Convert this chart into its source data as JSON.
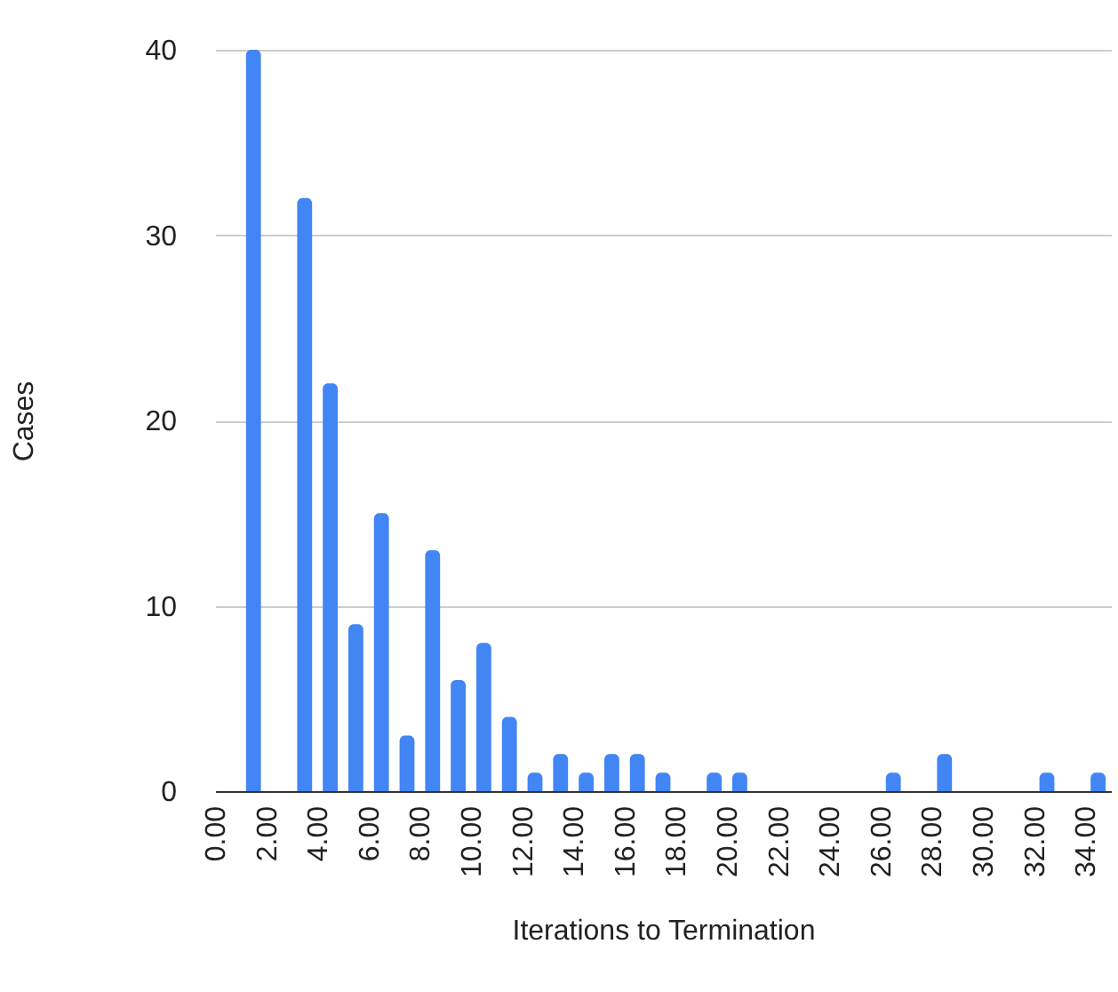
{
  "chart_data": {
    "type": "histogram",
    "xlabel": "Iterations to Termination",
    "ylabel": "Cases",
    "bins": [
      0,
      1,
      2,
      3,
      4,
      5,
      6,
      7,
      8,
      9,
      10,
      11,
      12,
      13,
      14,
      15,
      16,
      17,
      18,
      19,
      20,
      21,
      22,
      23,
      24,
      25,
      26,
      27,
      28,
      29,
      30,
      31,
      32,
      33,
      34,
      35
    ],
    "values": [
      0,
      40,
      0,
      32,
      22,
      9,
      15,
      3,
      13,
      6,
      8,
      4,
      1,
      2,
      1,
      2,
      2,
      1,
      0,
      1,
      1,
      0,
      0,
      0,
      0,
      0,
      1,
      0,
      2,
      0,
      0,
      0,
      1,
      0,
      1
    ],
    "color": "#4285f4",
    "xlim": [
      0,
      35
    ],
    "xticks": [
      {
        "value": 0,
        "label": "0.00"
      },
      {
        "value": 2,
        "label": "2.00"
      },
      {
        "value": 4,
        "label": "4.00"
      },
      {
        "value": 6,
        "label": "6.00"
      },
      {
        "value": 8,
        "label": "8.00"
      },
      {
        "value": 10,
        "label": "10.00"
      },
      {
        "value": 12,
        "label": "12.00"
      },
      {
        "value": 14,
        "label": "14.00"
      },
      {
        "value": 16,
        "label": "16.00"
      },
      {
        "value": 18,
        "label": "18.00"
      },
      {
        "value": 20,
        "label": "20.00"
      },
      {
        "value": 22,
        "label": "22.00"
      },
      {
        "value": 24,
        "label": "24.00"
      },
      {
        "value": 26,
        "label": "26.00"
      },
      {
        "value": 28,
        "label": "28.00"
      },
      {
        "value": 30,
        "label": "30.00"
      },
      {
        "value": 32,
        "label": "32.00"
      },
      {
        "value": 34,
        "label": "34.00"
      }
    ],
    "ylim": [
      0,
      40
    ],
    "yticks": [
      0,
      10,
      20,
      30,
      40
    ],
    "grid": "y"
  }
}
